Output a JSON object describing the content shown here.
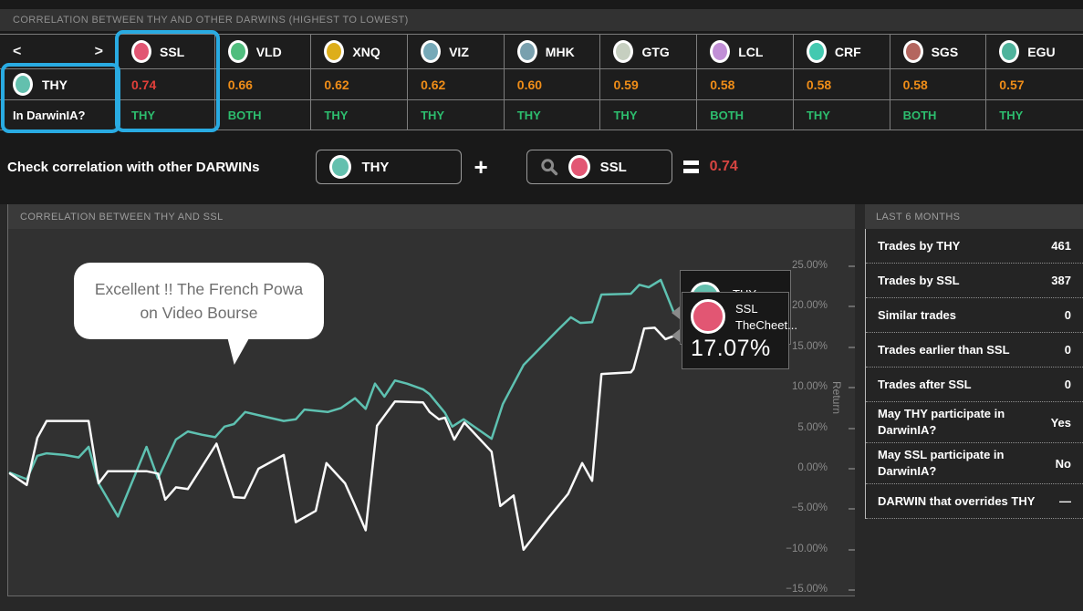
{
  "correlation_table": {
    "title": "CORRELATION BETWEEN THY AND OTHER DARWINS (HIGHEST TO LOWEST)",
    "nav": {
      "prev": "<",
      "next": ">"
    },
    "base": {
      "code": "THY",
      "color": "#63c0ae"
    },
    "darwinia_row_label": "In DarwinIA?",
    "darwinia_color": "#2dbd6e",
    "highlight_color": "#29abe2",
    "columns": [
      {
        "code": "SSL",
        "color": "#e25673",
        "value": "0.74",
        "value_color": "#e2403a",
        "darwinia": "THY"
      },
      {
        "code": "VLD",
        "color": "#50bd7e",
        "value": "0.66",
        "value_color": "#ef8d18",
        "darwinia": "BOTH"
      },
      {
        "code": "XNQ",
        "color": "#ddae1b",
        "value": "0.62",
        "value_color": "#ef8d18",
        "darwinia": "THY"
      },
      {
        "code": "VIZ",
        "color": "#76a9b8",
        "value": "0.62",
        "value_color": "#ef8d18",
        "darwinia": "THY"
      },
      {
        "code": "MHK",
        "color": "#79a0ae",
        "value": "0.60",
        "value_color": "#ef8d18",
        "darwinia": "THY"
      },
      {
        "code": "GTG",
        "color": "#c6cfc0",
        "value": "0.59",
        "value_color": "#ef8d18",
        "darwinia": "THY"
      },
      {
        "code": "LCL",
        "color": "#c18fd6",
        "value": "0.58",
        "value_color": "#ef8d18",
        "darwinia": "BOTH"
      },
      {
        "code": "CRF",
        "color": "#43c9b0",
        "value": "0.58",
        "value_color": "#ef8d18",
        "darwinia": "THY"
      },
      {
        "code": "SGS",
        "color": "#b4665f",
        "value": "0.58",
        "value_color": "#ef8d18",
        "darwinia": "BOTH"
      },
      {
        "code": "EGU",
        "color": "#4fb39c",
        "value": "0.57",
        "value_color": "#ef8d18",
        "darwinia": "THY"
      }
    ]
  },
  "selector": {
    "label": "Check correlation with other DARWINs",
    "left": {
      "code": "THY",
      "color": "#63c0ae"
    },
    "plus": "+",
    "right": {
      "code": "SSL",
      "color": "#e25673"
    },
    "result": "0.74",
    "result_color": "#d64541"
  },
  "chart": {
    "title": "CORRELATION BETWEEN THY AND SSL",
    "annotation": "Excellent !! The French Powa on Video Bourse",
    "tooltip_thy": {
      "code": "THY",
      "color": "#63c0ae"
    },
    "tooltip_ssl": {
      "code": "SSL",
      "name": "TheCheet...",
      "value": "17.07%",
      "color": "#e25673"
    }
  },
  "chart_data": {
    "type": "line",
    "title": "CORRELATION BETWEEN THY AND SSL",
    "ylabel": "Return",
    "ylim": [
      -15,
      25
    ],
    "grid": false,
    "yticks": [
      {
        "value": 25,
        "label": "25.00%"
      },
      {
        "value": 20,
        "label": "20.00%"
      },
      {
        "value": 15,
        "label": "15.00%"
      },
      {
        "value": 10,
        "label": "10.00%"
      },
      {
        "value": 5,
        "label": "5.00%"
      },
      {
        "value": 0,
        "label": "0.00%"
      },
      {
        "value": -5,
        "label": "−5.00%"
      },
      {
        "value": -10,
        "label": "−10.00%"
      },
      {
        "value": -15,
        "label": "−15.00%"
      }
    ],
    "series": [
      {
        "name": "THY",
        "color": "#5ec1b1",
        "points": [
          [
            0.0,
            -0.5
          ],
          [
            0.025,
            -1.3
          ],
          [
            0.041,
            1.6
          ],
          [
            0.055,
            1.9
          ],
          [
            0.082,
            1.7
          ],
          [
            0.103,
            1.4
          ],
          [
            0.118,
            2.7
          ],
          [
            0.133,
            -1.8
          ],
          [
            0.162,
            -5.9
          ],
          [
            0.205,
            2.7
          ],
          [
            0.222,
            -1.2
          ],
          [
            0.249,
            3.6
          ],
          [
            0.267,
            4.6
          ],
          [
            0.288,
            4.2
          ],
          [
            0.308,
            3.9
          ],
          [
            0.322,
            5.2
          ],
          [
            0.336,
            5.5
          ],
          [
            0.353,
            7.0
          ],
          [
            0.384,
            6.4
          ],
          [
            0.411,
            5.9
          ],
          [
            0.429,
            6.1
          ],
          [
            0.442,
            7.3
          ],
          [
            0.477,
            7.0
          ],
          [
            0.497,
            7.5
          ],
          [
            0.518,
            8.7
          ],
          [
            0.534,
            7.4
          ],
          [
            0.548,
            10.5
          ],
          [
            0.562,
            8.9
          ],
          [
            0.578,
            10.9
          ],
          [
            0.596,
            10.5
          ],
          [
            0.62,
            9.8
          ],
          [
            0.63,
            9.2
          ],
          [
            0.653,
            6.9
          ],
          [
            0.664,
            5.2
          ],
          [
            0.681,
            6.1
          ],
          [
            0.723,
            3.7
          ],
          [
            0.74,
            8.0
          ],
          [
            0.771,
            12.8
          ],
          [
            0.822,
            17.1
          ],
          [
            0.842,
            18.7
          ],
          [
            0.856,
            18.0
          ],
          [
            0.874,
            18.1
          ],
          [
            0.888,
            21.5
          ],
          [
            0.932,
            21.6
          ],
          [
            0.945,
            22.7
          ],
          [
            0.959,
            22.4
          ],
          [
            0.977,
            23.3
          ],
          [
            0.997,
            19.2
          ]
        ]
      },
      {
        "name": "SSL (TheCheet...)",
        "color": "#fafafa",
        "points": [
          [
            0.0,
            -0.6
          ],
          [
            0.025,
            -2.0
          ],
          [
            0.041,
            3.8
          ],
          [
            0.055,
            5.9
          ],
          [
            0.118,
            5.9
          ],
          [
            0.133,
            -1.8
          ],
          [
            0.147,
            -0.3
          ],
          [
            0.205,
            -0.3
          ],
          [
            0.222,
            -0.6
          ],
          [
            0.233,
            -3.8
          ],
          [
            0.249,
            -2.3
          ],
          [
            0.267,
            -2.5
          ],
          [
            0.31,
            3.1
          ],
          [
            0.336,
            -3.5
          ],
          [
            0.352,
            -3.6
          ],
          [
            0.373,
            0.0
          ],
          [
            0.411,
            1.7
          ],
          [
            0.429,
            -6.6
          ],
          [
            0.459,
            -5.2
          ],
          [
            0.475,
            0.7
          ],
          [
            0.503,
            -1.8
          ],
          [
            0.516,
            -4.2
          ],
          [
            0.534,
            -7.6
          ],
          [
            0.551,
            5.3
          ],
          [
            0.578,
            8.3
          ],
          [
            0.62,
            8.2
          ],
          [
            0.63,
            7.0
          ],
          [
            0.644,
            6.1
          ],
          [
            0.653,
            6.3
          ],
          [
            0.667,
            3.6
          ],
          [
            0.682,
            5.7
          ],
          [
            0.723,
            2.1
          ],
          [
            0.736,
            -4.6
          ],
          [
            0.756,
            -3.3
          ],
          [
            0.771,
            -10.0
          ],
          [
            0.808,
            -6.1
          ],
          [
            0.838,
            -3.1
          ],
          [
            0.859,
            0.7
          ],
          [
            0.874,
            -1.5
          ],
          [
            0.888,
            11.7
          ],
          [
            0.932,
            11.9
          ],
          [
            0.936,
            12.3
          ],
          [
            0.952,
            17.3
          ],
          [
            0.968,
            17.4
          ],
          [
            0.984,
            16.0
          ],
          [
            1.0,
            16.5
          ]
        ]
      }
    ]
  },
  "stats_panel": {
    "title": "LAST 6 MONTHS",
    "rows": [
      {
        "label": "Trades by THY",
        "value": "461"
      },
      {
        "label": "Trades by SSL",
        "value": "387"
      },
      {
        "label": "Similar trades",
        "value": "0"
      },
      {
        "label": "Trades earlier than SSL",
        "value": "0"
      },
      {
        "label": "Trades after SSL",
        "value": "0"
      },
      {
        "label": "May THY participate in DarwinIA?",
        "value": "Yes"
      },
      {
        "label": "May SSL participate in DarwinIA?",
        "value": "No"
      },
      {
        "label": "DARWIN that overrides THY",
        "value": "—"
      }
    ]
  }
}
